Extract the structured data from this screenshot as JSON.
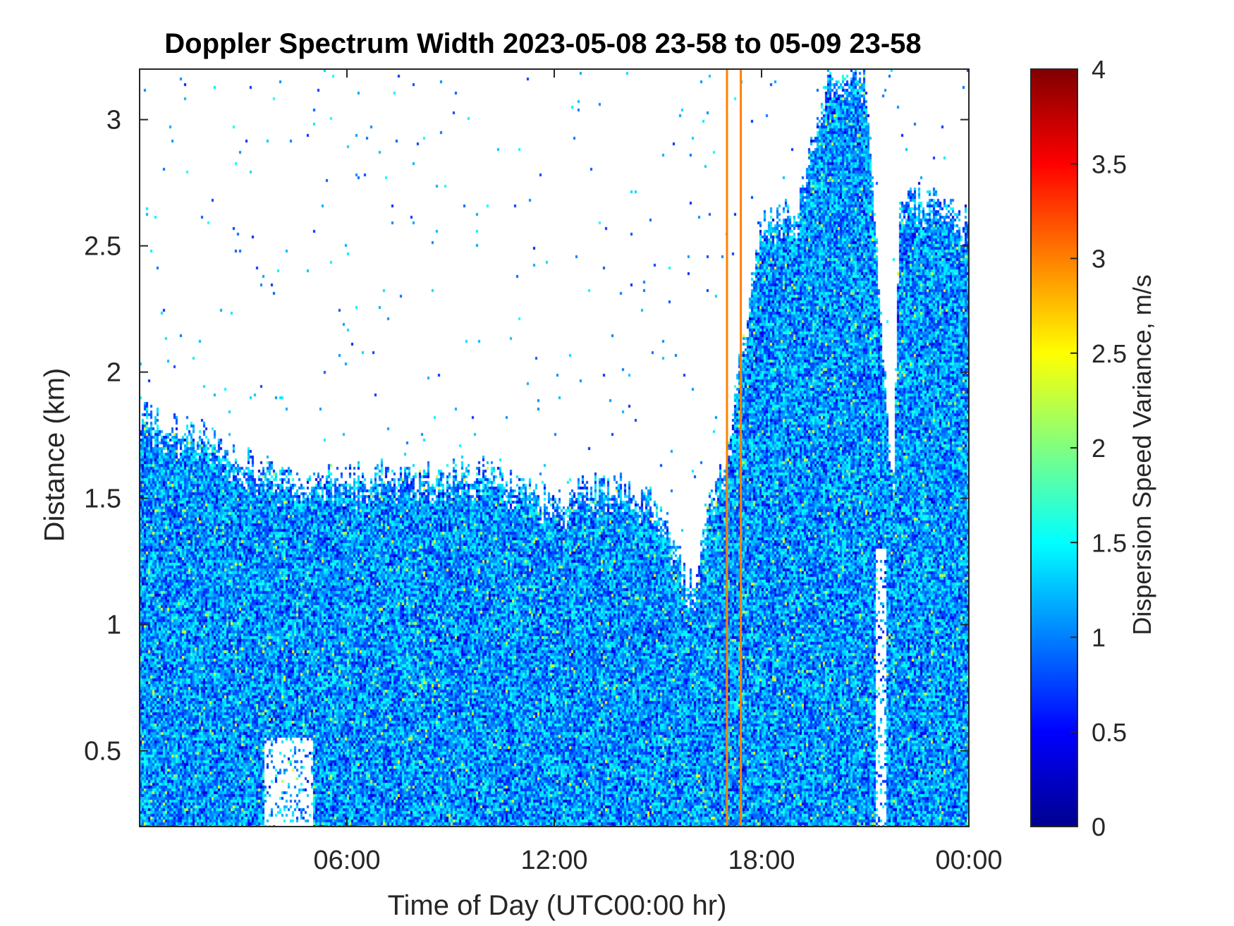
{
  "chart_data": {
    "type": "heatmap",
    "title": "Doppler Spectrum Width 2023-05-08 23-58 to 05-09 23-58",
    "xlabel": "Time of Day (UTC00:00 hr)",
    "ylabel": "Distance (km)",
    "colorbar_label": "Dispersion Speed Variance, m/s",
    "x_ticks": [
      {
        "value": 6,
        "label": "06:00"
      },
      {
        "value": 12,
        "label": "12:00"
      },
      {
        "value": 18,
        "label": "18:00"
      },
      {
        "value": 24,
        "label": "00:00"
      }
    ],
    "y_ticks": [
      {
        "value": 0.5,
        "label": "0.5"
      },
      {
        "value": 1,
        "label": "1"
      },
      {
        "value": 1.5,
        "label": "1.5"
      },
      {
        "value": 2,
        "label": "2"
      },
      {
        "value": 2.5,
        "label": "2.5"
      },
      {
        "value": 3,
        "label": "3"
      }
    ],
    "colorbar_ticks": [
      {
        "value": 0,
        "label": "0"
      },
      {
        "value": 0.5,
        "label": "0.5"
      },
      {
        "value": 1,
        "label": "1"
      },
      {
        "value": 1.5,
        "label": "1.5"
      },
      {
        "value": 2,
        "label": "2"
      },
      {
        "value": 2.5,
        "label": "2.5"
      },
      {
        "value": 3,
        "label": "3"
      },
      {
        "value": 3.5,
        "label": "3.5"
      },
      {
        "value": 4,
        "label": "4"
      }
    ],
    "xlim": [
      0,
      24
    ],
    "ylim": [
      0.2,
      3.2
    ],
    "clim": [
      0,
      4
    ],
    "colormap": "jet",
    "colormap_stops": [
      "#00008f",
      "#0000ff",
      "#0080ff",
      "#00ffff",
      "#80ff80",
      "#ffff00",
      "#ff8000",
      "#ff0000",
      "#800000"
    ],
    "typical_value_range": [
      0.6,
      1.6
    ],
    "echo_top_profile": {
      "hours": [
        0,
        1,
        2,
        3,
        4,
        5,
        6,
        7,
        8,
        9,
        10,
        11,
        12,
        13,
        14,
        15,
        15.5,
        16,
        16.5,
        17,
        18,
        19,
        20,
        21,
        21.8,
        22,
        23,
        24
      ],
      "top_km": [
        1.85,
        1.8,
        1.75,
        1.65,
        1.6,
        1.6,
        1.6,
        1.6,
        1.6,
        1.6,
        1.62,
        1.55,
        1.5,
        1.55,
        1.55,
        1.5,
        1.3,
        1.15,
        1.5,
        1.7,
        2.6,
        2.65,
        3.2,
        3.2,
        1.5,
        2.7,
        2.7,
        2.6
      ]
    },
    "data_gaps": [
      {
        "hour_start": 3.6,
        "hour_end": 5.0,
        "top_km": 0.55
      },
      {
        "hour_start": 21.3,
        "hour_end": 21.6,
        "top_km": 1.3
      }
    ],
    "high_variance_streaks": [
      {
        "hour": 17.0,
        "value": 3.0
      },
      {
        "hour": 17.4,
        "value": 3.0
      }
    ],
    "grid": false
  }
}
